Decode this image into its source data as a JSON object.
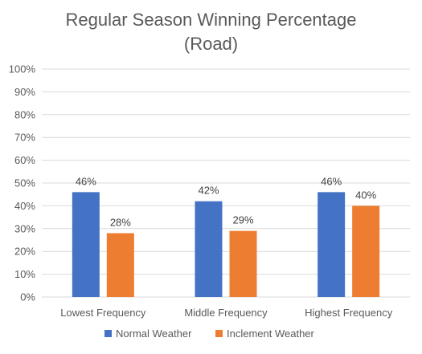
{
  "chart_data": {
    "type": "bar",
    "title_lines": [
      "Regular Season Winning Percentage",
      "(Road)"
    ],
    "categories": [
      "Lowest Frequency",
      "Middle Frequency",
      "Highest Frequency"
    ],
    "series": [
      {
        "name": "Normal Weather",
        "values": [
          46,
          42,
          46
        ],
        "labels": [
          "46%",
          "42%",
          "46%"
        ],
        "color": "#4472C4"
      },
      {
        "name": "Inclement Weather",
        "values": [
          28,
          29,
          40
        ],
        "labels": [
          "28%",
          "29%",
          "40%"
        ],
        "color": "#ED7D31"
      }
    ],
    "y_ticks": [
      "0%",
      "10%",
      "20%",
      "30%",
      "40%",
      "50%",
      "60%",
      "70%",
      "80%",
      "90%",
      "100%"
    ],
    "ylim": [
      0,
      100
    ],
    "grid": true,
    "legend_position": "bottom",
    "gridline_color": "#D9D9D9",
    "text_color": "#595959"
  }
}
